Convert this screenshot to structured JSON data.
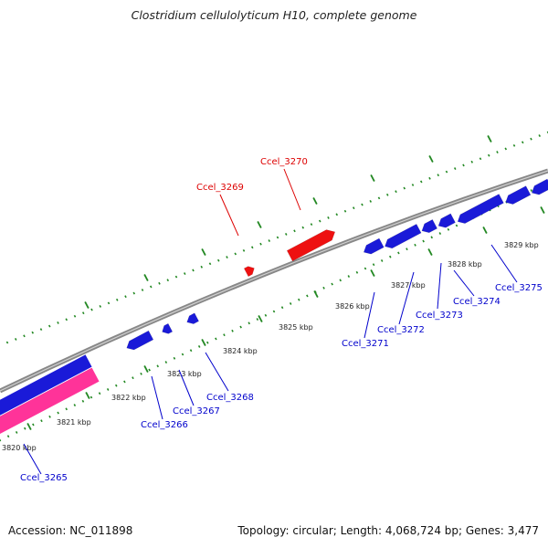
{
  "title": "Clostridium cellulolyticum H10, complete genome",
  "footer": {
    "accession": "Accession: NC_011898",
    "summary": "Topology: circular; Length: 4,068,724 bp; Genes: 3,477"
  },
  "colors": {
    "forward_gene": "#ee1111",
    "reverse_gene": "#1a1ad8",
    "other_feature": "#ff3399",
    "backbone": "#888888",
    "ticks": "#228822",
    "forward_label": "#dd0000",
    "reverse_label": "#0000cc"
  },
  "tick_labels": [
    "3820 kbp",
    "3821 kbp",
    "3822 kbp",
    "3823 kbp",
    "3824 kbp",
    "3825 kbp",
    "3826 kbp",
    "3827 kbp",
    "3828 kbp",
    "3829 kbp"
  ],
  "genes": [
    {
      "id": "Ccel_3265",
      "strand": "reverse"
    },
    {
      "id": "Ccel_3266",
      "strand": "reverse"
    },
    {
      "id": "Ccel_3267",
      "strand": "reverse"
    },
    {
      "id": "Ccel_3268",
      "strand": "reverse"
    },
    {
      "id": "Ccel_3269",
      "strand": "forward"
    },
    {
      "id": "Ccel_3270",
      "strand": "forward"
    },
    {
      "id": "Ccel_3271",
      "strand": "reverse"
    },
    {
      "id": "Ccel_3272",
      "strand": "reverse"
    },
    {
      "id": "Ccel_3273",
      "strand": "reverse"
    },
    {
      "id": "Ccel_3274",
      "strand": "reverse"
    },
    {
      "id": "Ccel_3275",
      "strand": "reverse"
    }
  ]
}
